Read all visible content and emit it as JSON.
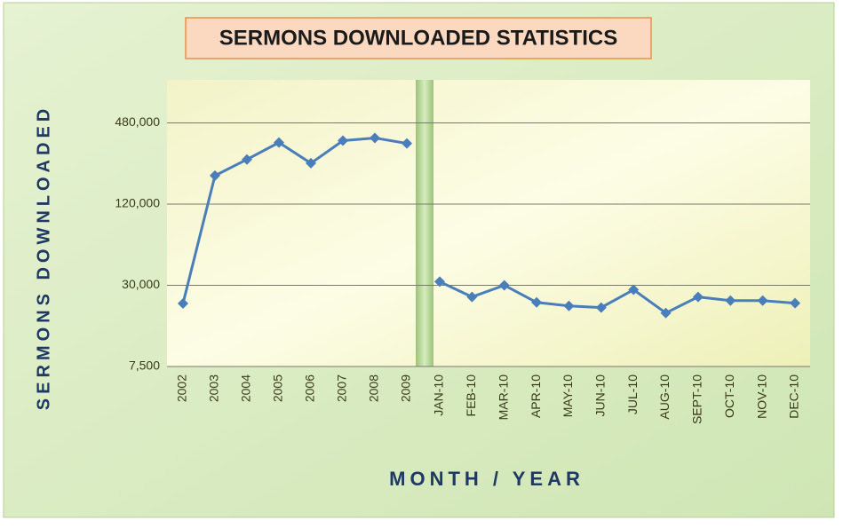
{
  "chart_data": {
    "type": "line",
    "title": "SERMONS DOWNLOADED STATISTICS",
    "x_label": "MONTH / YEAR",
    "y_label": "SERMONS DOWNLOADED",
    "categories": [
      "2002",
      "2003",
      "2004",
      "2005",
      "2006",
      "2007",
      "2008",
      "2009",
      null,
      "JAN-10",
      "FEB-10",
      "MAR-10",
      "APR-10",
      "MAY-10",
      "JUN-10",
      "JUL-10",
      "AUG-10",
      "SEPT-10",
      "OCT-10",
      "NOV-10",
      "DEC-10"
    ],
    "values": [
      22000,
      195000,
      257000,
      343000,
      241000,
      354000,
      371000,
      338000,
      null,
      31900,
      24600,
      30000,
      22400,
      21100,
      20500,
      27800,
      18700,
      24600,
      23100,
      23100,
      22100
    ],
    "color": "#4a7ebb",
    "yscale": "log",
    "grid": true,
    "ylim": [
      7500,
      1000000
    ],
    "yticks": [
      {
        "value": 7500,
        "label": "7,500"
      },
      {
        "value": 30000,
        "label": "30,000"
      },
      {
        "value": 120000,
        "label": "120,000"
      },
      {
        "value": 480000,
        "label": "480,000"
      }
    ]
  }
}
